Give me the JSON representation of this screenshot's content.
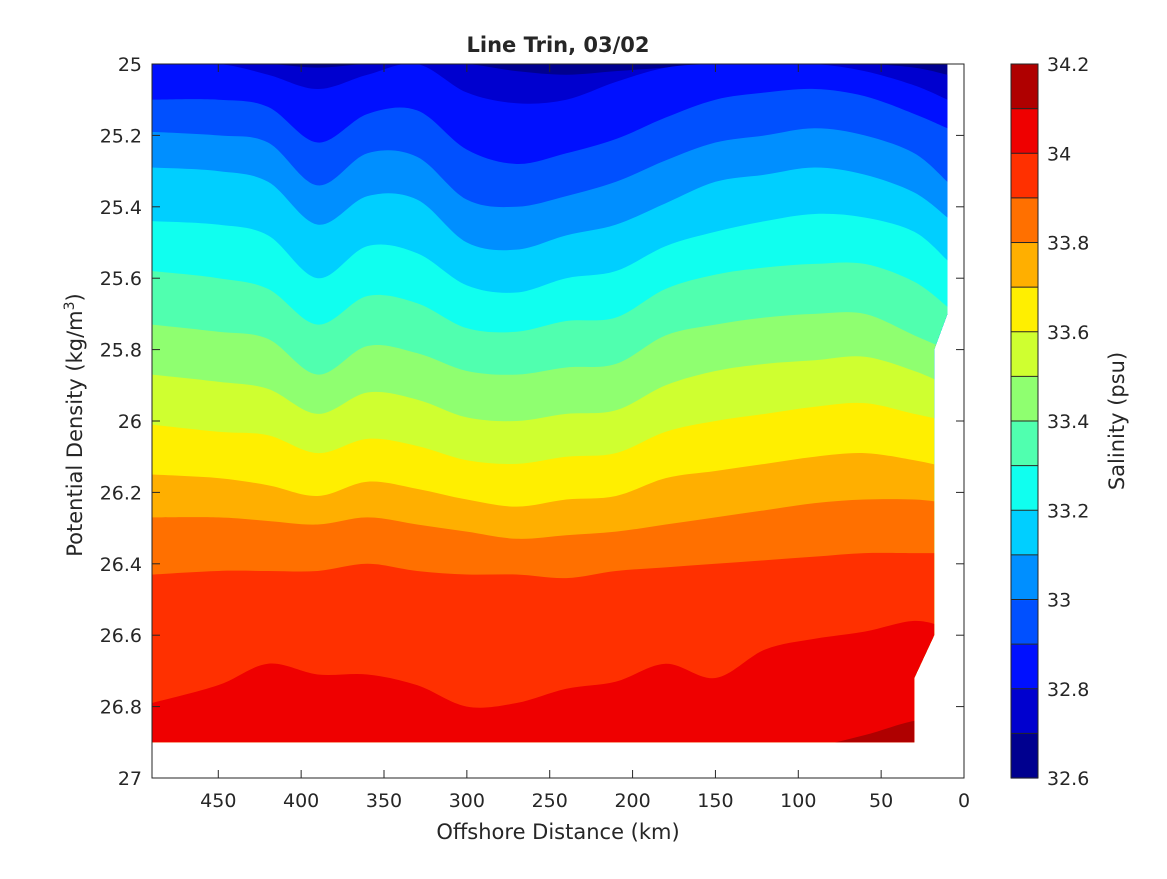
{
  "chart_data": {
    "type": "contour",
    "title": "Line Trin, 03/02",
    "xlabel": "Offshore Distance (km)",
    "ylabel_text": "Potential Density (kg/m",
    "ylabel_sup": "3",
    "ylabel_close": ")",
    "xlim": [
      490,
      0
    ],
    "ylim": [
      25,
      27
    ],
    "y_reversed": true,
    "x_ticks": [
      450,
      400,
      350,
      300,
      250,
      200,
      150,
      100,
      50,
      0
    ],
    "y_ticks": [
      "25",
      "25.2",
      "25.4",
      "25.6",
      "25.8",
      "26",
      "26.2",
      "26.4",
      "26.6",
      "26.8",
      "27"
    ],
    "colorbar": {
      "label": "Salinity (psu)",
      "limits": [
        32.6,
        34.2
      ],
      "tick_labels": [
        "32.6",
        "32.8",
        "33",
        "33.2",
        "33.4",
        "33.6",
        "33.8",
        "34",
        "34.2"
      ],
      "levels": [
        32.6,
        32.7,
        32.8,
        32.9,
        33.0,
        33.1,
        33.2,
        33.3,
        33.4,
        33.5,
        33.6,
        33.7,
        33.8,
        33.9,
        34.0,
        34.1,
        34.2
      ],
      "colors": [
        "#00008f",
        "#0000cf",
        "#0010ff",
        "#0050ff",
        "#008fff",
        "#00cfff",
        "#10ffef",
        "#50ffaf",
        "#8fff70",
        "#cfff30",
        "#ffef00",
        "#ffaf00",
        "#ff7000",
        "#ff3000",
        "#ef0000",
        "#af0000"
      ]
    },
    "data_extent": {
      "x_far": 490,
      "x_near_edge": [
        [
          25.0,
          10
        ],
        [
          25.7,
          10
        ],
        [
          25.8,
          18
        ],
        [
          26.6,
          18
        ],
        [
          26.72,
          30
        ],
        [
          26.9,
          30
        ]
      ],
      "bottom_density": 26.9
    },
    "isohaline_distances_km": [
      490,
      450,
      420,
      390,
      360,
      330,
      300,
      270,
      240,
      210,
      180,
      150,
      120,
      90,
      60,
      30,
      10
    ],
    "isohalines": [
      {
        "level": 32.7,
        "density": [
          25.0,
          25.0,
          25.0,
          25.01,
          25.0,
          25.0,
          25.0,
          25.02,
          25.03,
          25.02,
          25.01,
          25.0,
          25.0,
          25.0,
          25.0,
          25.01,
          25.03
        ]
      },
      {
        "level": 32.8,
        "density": [
          25.0,
          25.0,
          25.03,
          25.07,
          25.03,
          25.0,
          25.08,
          25.11,
          25.1,
          25.05,
          25.01,
          25.0,
          25.0,
          25.0,
          25.02,
          25.06,
          25.1
        ]
      },
      {
        "level": 32.9,
        "density": [
          25.1,
          25.1,
          25.12,
          25.22,
          25.14,
          25.13,
          25.24,
          25.28,
          25.25,
          25.21,
          25.15,
          25.1,
          25.08,
          25.07,
          25.09,
          25.14,
          25.18
        ]
      },
      {
        "level": 33.0,
        "density": [
          25.19,
          25.2,
          25.22,
          25.34,
          25.25,
          25.26,
          25.38,
          25.4,
          25.37,
          25.33,
          25.27,
          25.22,
          25.2,
          25.18,
          25.2,
          25.25,
          25.33
        ]
      },
      {
        "level": 33.1,
        "density": [
          25.29,
          25.3,
          25.33,
          25.45,
          25.37,
          25.38,
          25.5,
          25.52,
          25.48,
          25.45,
          25.39,
          25.33,
          25.31,
          25.29,
          25.31,
          25.36,
          25.43
        ]
      },
      {
        "level": 33.2,
        "density": [
          25.44,
          25.45,
          25.48,
          25.6,
          25.51,
          25.53,
          25.62,
          25.64,
          25.6,
          25.58,
          25.51,
          25.47,
          25.44,
          25.42,
          25.43,
          25.47,
          25.55
        ]
      },
      {
        "level": 33.3,
        "density": [
          25.58,
          25.6,
          25.63,
          25.73,
          25.65,
          25.67,
          25.74,
          25.75,
          25.72,
          25.71,
          25.63,
          25.59,
          25.57,
          25.56,
          25.56,
          25.61,
          25.68
        ]
      },
      {
        "level": 33.4,
        "density": [
          25.73,
          25.75,
          25.77,
          25.87,
          25.79,
          25.81,
          25.86,
          25.87,
          25.85,
          25.84,
          25.76,
          25.73,
          25.71,
          25.7,
          25.7,
          25.76,
          25.8
        ]
      },
      {
        "level": 33.5,
        "density": [
          25.87,
          25.89,
          25.91,
          25.98,
          25.92,
          25.94,
          25.99,
          26.0,
          25.98,
          25.97,
          25.9,
          25.86,
          25.84,
          25.83,
          25.82,
          25.86,
          25.9
        ]
      },
      {
        "level": 33.6,
        "density": [
          26.01,
          26.03,
          26.04,
          26.09,
          26.05,
          26.07,
          26.11,
          26.12,
          26.1,
          26.09,
          26.03,
          26.0,
          25.98,
          25.96,
          25.95,
          25.98,
          26.0
        ]
      },
      {
        "level": 33.7,
        "density": [
          26.15,
          26.16,
          26.18,
          26.21,
          26.17,
          26.19,
          26.22,
          26.24,
          26.22,
          26.21,
          26.16,
          26.14,
          26.12,
          26.1,
          26.09,
          26.11,
          26.13
        ]
      },
      {
        "level": 33.8,
        "density": [
          26.27,
          26.27,
          26.28,
          26.29,
          26.27,
          26.29,
          26.31,
          26.33,
          26.32,
          26.31,
          26.29,
          26.27,
          26.25,
          26.23,
          26.22,
          26.22,
          26.23
        ]
      },
      {
        "level": 33.9,
        "density": [
          26.43,
          26.42,
          26.42,
          26.42,
          26.4,
          26.42,
          26.43,
          26.43,
          26.44,
          26.42,
          26.41,
          26.4,
          26.39,
          26.38,
          26.37,
          26.37,
          26.37
        ]
      },
      {
        "level": 34.0,
        "density": [
          26.79,
          26.74,
          26.68,
          26.71,
          26.71,
          26.74,
          26.8,
          26.79,
          26.75,
          26.73,
          26.68,
          26.72,
          26.64,
          26.61,
          26.59,
          26.56,
          26.58
        ]
      },
      {
        "level": 34.1,
        "density": [
          26.91,
          26.91,
          26.91,
          26.91,
          26.91,
          26.91,
          26.91,
          26.91,
          26.91,
          26.91,
          26.91,
          26.91,
          26.91,
          26.91,
          26.88,
          26.84,
          26.84
        ]
      }
    ]
  }
}
